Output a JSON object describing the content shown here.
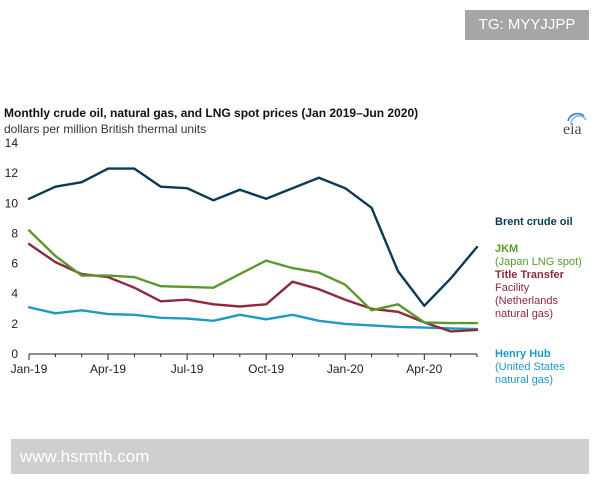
{
  "overlay": {
    "tag": "TG: MYYJJPP",
    "footer": "www.hsrmth.com"
  },
  "logo": {
    "text": "eia"
  },
  "chart_data": {
    "type": "line",
    "title": "Monthly crude oil, natural gas, and LNG spot prices (Jan 2019–Jun 2020)",
    "subtitle": "dollars per million British thermal units",
    "xlabel": "",
    "ylabel": "",
    "x": [
      "Jan-19",
      "Feb-19",
      "Mar-19",
      "Apr-19",
      "May-19",
      "Jun-19",
      "Jul-19",
      "Aug-19",
      "Sep-19",
      "Oct-19",
      "Nov-19",
      "Dec-19",
      "Jan-20",
      "Feb-20",
      "Mar-20",
      "Apr-20",
      "May-20",
      "Jun-20"
    ],
    "x_tick_labels": [
      "Jan-19",
      "Apr-19",
      "Jul-19",
      "Oct-19",
      "Jan-20",
      "Apr-20"
    ],
    "y_ticks": [
      0,
      2,
      4,
      6,
      8,
      10,
      12,
      14
    ],
    "ylim": [
      0,
      14
    ],
    "grid": false,
    "legend": "right, labels at line ends",
    "series": [
      {
        "name": "Brent crude oil",
        "label_lines": [
          "Brent crude oil"
        ],
        "color": "#0b3a54",
        "values": [
          10.3,
          11.1,
          11.4,
          12.3,
          12.3,
          11.1,
          11.0,
          10.2,
          10.9,
          10.3,
          11.0,
          11.7,
          11.0,
          9.7,
          5.5,
          3.2,
          5.0,
          7.1
        ]
      },
      {
        "name": "JKM (Japan LNG spot)",
        "label_lines": [
          "JKM",
          "(Japan LNG spot)"
        ],
        "color": "#5a9a2a",
        "values": [
          8.2,
          6.5,
          5.2,
          5.2,
          5.1,
          4.5,
          4.45,
          4.4,
          5.3,
          6.2,
          5.7,
          5.4,
          4.6,
          2.9,
          3.3,
          2.1,
          2.05,
          2.05
        ]
      },
      {
        "name": "Title Transfer Facility (Netherlands natural gas)",
        "label_lines": [
          "Title Transfer",
          "Facility",
          "(Netherlands",
          "natural gas)"
        ],
        "color": "#8c2b3e",
        "values": [
          7.3,
          6.1,
          5.3,
          5.1,
          4.4,
          3.5,
          3.6,
          3.3,
          3.15,
          3.3,
          4.8,
          4.3,
          3.6,
          3.0,
          2.8,
          2.1,
          1.5,
          1.6
        ]
      },
      {
        "name": "Henry Hub (United States natural gas)",
        "label_lines": [
          "Henry Hub",
          "(United States",
          "natural gas)"
        ],
        "color": "#1e9ac4",
        "values": [
          3.1,
          2.7,
          2.9,
          2.65,
          2.6,
          2.4,
          2.35,
          2.2,
          2.6,
          2.3,
          2.6,
          2.2,
          2.0,
          1.9,
          1.8,
          1.75,
          1.7,
          1.65
        ]
      }
    ]
  }
}
